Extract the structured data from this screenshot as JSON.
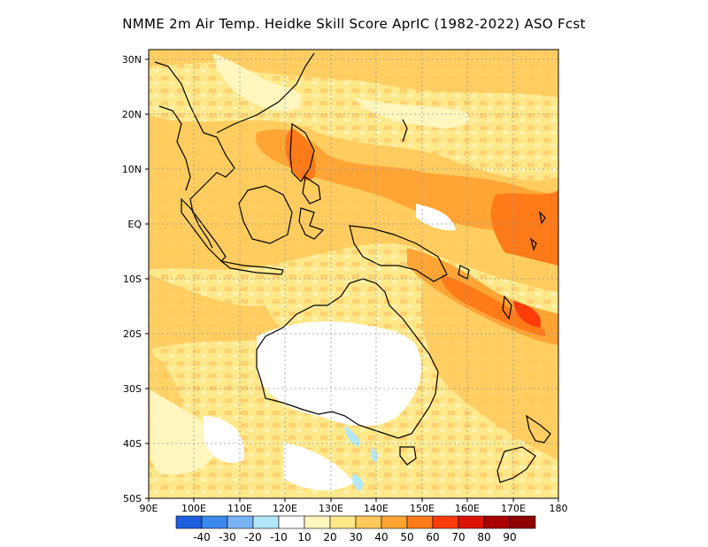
{
  "title": "NMME  2m Air Temp. Heidke Skill Score AprIC (1982-2022) ASO Fcst",
  "map": {
    "lat_labels": [
      "30N",
      "20N",
      "10N",
      "EQ",
      "10S",
      "20S",
      "30S",
      "40S",
      "50S"
    ],
    "lon_labels": [
      "90E",
      "100E",
      "110E",
      "120E",
      "130E",
      "140E",
      "150E",
      "160E",
      "170E",
      "180"
    ],
    "lon_range": [
      90,
      180
    ],
    "lat_range": [
      -50,
      32
    ],
    "grid": "dotted gray gridlines every 10 degrees"
  },
  "colorbar": {
    "levels": [
      "-40",
      "-30",
      "-20",
      "-10",
      "10",
      "20",
      "30",
      "40",
      "50",
      "60",
      "70",
      "80",
      "90"
    ],
    "colors": [
      "#1e5fe0",
      "#3c88ef",
      "#78b4f5",
      "#b4e8f8",
      "#ffffff",
      "#fff6be",
      "#ffe88a",
      "#ffc95a",
      "#ffa535",
      "#ff7a18",
      "#ff3c0a",
      "#dc1405",
      "#aa0000",
      "#8c0000"
    ]
  },
  "legend_colors": {
    "land_outline": "#000000",
    "background": "#ffffff"
  }
}
